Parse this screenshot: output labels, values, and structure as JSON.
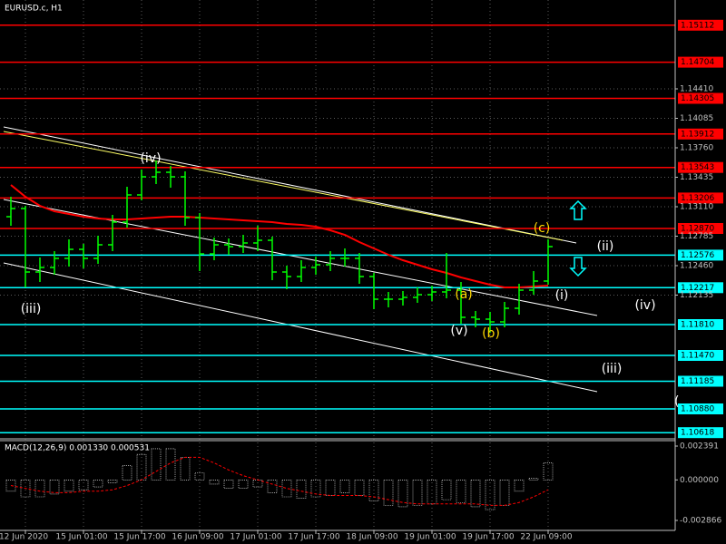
{
  "chart_data": [
    {
      "type": "ohlc",
      "title": "EURUSD.c, H1",
      "categories": [
        null,
        "12 Jun 2020",
        null,
        null,
        null,
        "15 Jun 01:00",
        null,
        null,
        null,
        "15 Jun 17:00",
        null,
        null,
        null,
        "16 Jun 09:00",
        null,
        null,
        null,
        "17 Jun 01:00",
        null,
        null,
        null,
        "17 Jun 17:00",
        null,
        null,
        null,
        "18 Jun 09:00",
        null,
        null,
        null,
        "19 Jun 01:00",
        null,
        null,
        null,
        "19 Jun 17:00",
        null,
        null,
        null,
        "22 Jun 09:00"
      ],
      "open": [
        1.13,
        1.1309,
        1.1239,
        1.1244,
        1.1254,
        1.1264,
        1.1254,
        1.1269,
        1.1294,
        1.1324,
        1.1344,
        1.1349,
        1.1344,
        1.1299,
        1.1259,
        1.1269,
        1.1267,
        1.1271,
        1.1274,
        1.1239,
        1.1234,
        1.1244,
        1.1247,
        1.1254,
        1.1254,
        1.1234,
        1.1209,
        1.1209,
        1.1211,
        1.1214,
        1.1217,
        1.1219,
        1.1189,
        1.1187,
        1.1184,
        1.1199,
        1.1219,
        1.1229
      ],
      "high": [
        1.1322,
        1.1312,
        1.1255,
        1.1262,
        1.1275,
        1.127,
        1.1279,
        1.1302,
        1.1333,
        1.1352,
        1.1362,
        1.1356,
        1.135,
        1.1304,
        1.1277,
        1.1276,
        1.128,
        1.129,
        1.1278,
        1.1246,
        1.1252,
        1.1256,
        1.1262,
        1.1265,
        1.126,
        1.1238,
        1.1217,
        1.1218,
        1.1222,
        1.1224,
        1.126,
        1.1228,
        1.1196,
        1.1195,
        1.1206,
        1.1226,
        1.124,
        1.1275
      ],
      "low": [
        1.129,
        1.1222,
        1.1228,
        1.1236,
        1.1245,
        1.1243,
        1.1248,
        1.1262,
        1.1288,
        1.1318,
        1.1336,
        1.1332,
        1.129,
        1.124,
        1.1252,
        1.1258,
        1.126,
        1.1262,
        1.123,
        1.122,
        1.1228,
        1.1236,
        1.124,
        1.1245,
        1.1226,
        1.1198,
        1.12,
        1.1202,
        1.1205,
        1.1207,
        1.121,
        1.1182,
        1.1178,
        1.1172,
        1.1178,
        1.1192,
        1.1214,
        1.1225
      ],
      "close": [
        1.1309,
        1.1239,
        1.1244,
        1.1254,
        1.1264,
        1.1254,
        1.1269,
        1.1294,
        1.1324,
        1.1344,
        1.1349,
        1.1344,
        1.1299,
        1.1259,
        1.1269,
        1.1267,
        1.1271,
        1.1274,
        1.1239,
        1.1234,
        1.1244,
        1.1247,
        1.1254,
        1.1254,
        1.1234,
        1.1209,
        1.1209,
        1.1211,
        1.1214,
        1.1217,
        1.1219,
        1.1189,
        1.1187,
        1.1184,
        1.1199,
        1.1219,
        1.1229,
        1.1267
      ],
      "color": "#00ff00",
      "ma": {
        "color": "#ff0000",
        "values": [
          1.1335,
          1.1322,
          1.1312,
          1.1306,
          1.1303,
          1.13,
          1.1298,
          1.1297,
          1.1297,
          1.1298,
          1.1299,
          1.13,
          1.13,
          1.1299,
          1.1298,
          1.1297,
          1.1296,
          1.1295,
          1.1294,
          1.1292,
          1.1291,
          1.1289,
          1.1285,
          1.128,
          1.1272,
          1.1265,
          1.1258,
          1.1252,
          1.1247,
          1.1242,
          1.1238,
          1.1233,
          1.1229,
          1.1225,
          1.1222,
          1.1222,
          1.1223,
          1.1224
        ]
      },
      "ylim": [
        1.1056,
        1.1539
      ],
      "yticks": [
        {
          "value": 1.1441,
          "label": "1.14410"
        },
        1.14085,
        {
          "value": 1.1376,
          "label": "1.13760"
        },
        1.13435,
        {
          "value": 1.1311,
          "label": "1.13110"
        },
        1.12785,
        {
          "value": 1.1246,
          "label": "1.12460"
        },
        1.12135
      ],
      "grid": true,
      "levels": [
        {
          "value": 1.15112,
          "color": "#ff0000"
        },
        {
          "value": 1.14704,
          "color": "#ff0000"
        },
        {
          "value": 1.14305,
          "color": "#ff0000"
        },
        {
          "value": 1.13912,
          "color": "#ff0000"
        },
        {
          "value": 1.13543,
          "color": "#ff0000"
        },
        {
          "value": 1.13206,
          "color": "#ff0000"
        },
        {
          "value": 1.1287,
          "label": "1.12870",
          "color": "#ff0000"
        },
        {
          "value": 1.12576,
          "color": "#00ffff"
        },
        {
          "value": 1.12217,
          "color": "#00ffff"
        },
        {
          "value": 1.1181,
          "label": "1.11810",
          "color": "#00ffff"
        },
        {
          "value": 1.1147,
          "label": "1.11470",
          "color": "#00ffff"
        },
        {
          "value": 1.11185,
          "color": "#00ffff"
        },
        {
          "value": 1.1088,
          "label": "1.10880",
          "color": "#00ffff"
        },
        {
          "value": 1.10618,
          "color": "#00ffff"
        }
      ],
      "annotations": [
        "(iv)",
        "(iii)",
        "(a)",
        "(v)",
        "(b)",
        "(c)",
        "(ii)",
        "(i)",
        "(iv)",
        "(iii)",
        "("
      ]
    },
    {
      "type": "macd",
      "title": "MACD(12,26,9) 0.001330 0.000531",
      "values": [
        -0.0008,
        -0.0012,
        -0.0012,
        -0.001,
        -0.0008,
        -0.0007,
        -0.0005,
        -0.0002,
        0.001,
        0.0018,
        0.0022,
        0.0022,
        0.0016,
        0.0005,
        -0.0003,
        -0.0006,
        -0.0006,
        -0.0005,
        -0.0009,
        -0.0012,
        -0.0013,
        -0.0012,
        -0.0011,
        -0.0009,
        -0.0011,
        -0.0015,
        -0.0018,
        -0.0019,
        -0.0018,
        -0.0017,
        -0.0014,
        -0.0016,
        -0.0019,
        -0.0021,
        -0.0018,
        -0.0008,
        0.0001,
        0.0012
      ],
      "signal": [
        -0.0004,
        -0.0006,
        -0.0008,
        -0.0009,
        -0.0009,
        -0.0008,
        -0.0008,
        -0.0007,
        -0.0004,
        0.0,
        0.0006,
        0.0012,
        0.0016,
        0.0016,
        0.0012,
        0.0007,
        0.0003,
        0.0,
        -0.0003,
        -0.0006,
        -0.0008,
        -0.001,
        -0.0011,
        -0.0011,
        -0.0011,
        -0.0012,
        -0.0014,
        -0.0016,
        -0.0017,
        -0.0017,
        -0.0017,
        -0.0017,
        -0.0017,
        -0.0018,
        -0.0018,
        -0.0016,
        -0.0012,
        -0.0007
      ],
      "color": "#ffffff",
      "signal_color": "#ff0000",
      "ylim": [
        -0.003571,
        0.002711
      ],
      "yticks": [
        0.002391,
        {
          "value": 0,
          "label": "0.000000"
        },
        -0.002866
      ]
    }
  ]
}
